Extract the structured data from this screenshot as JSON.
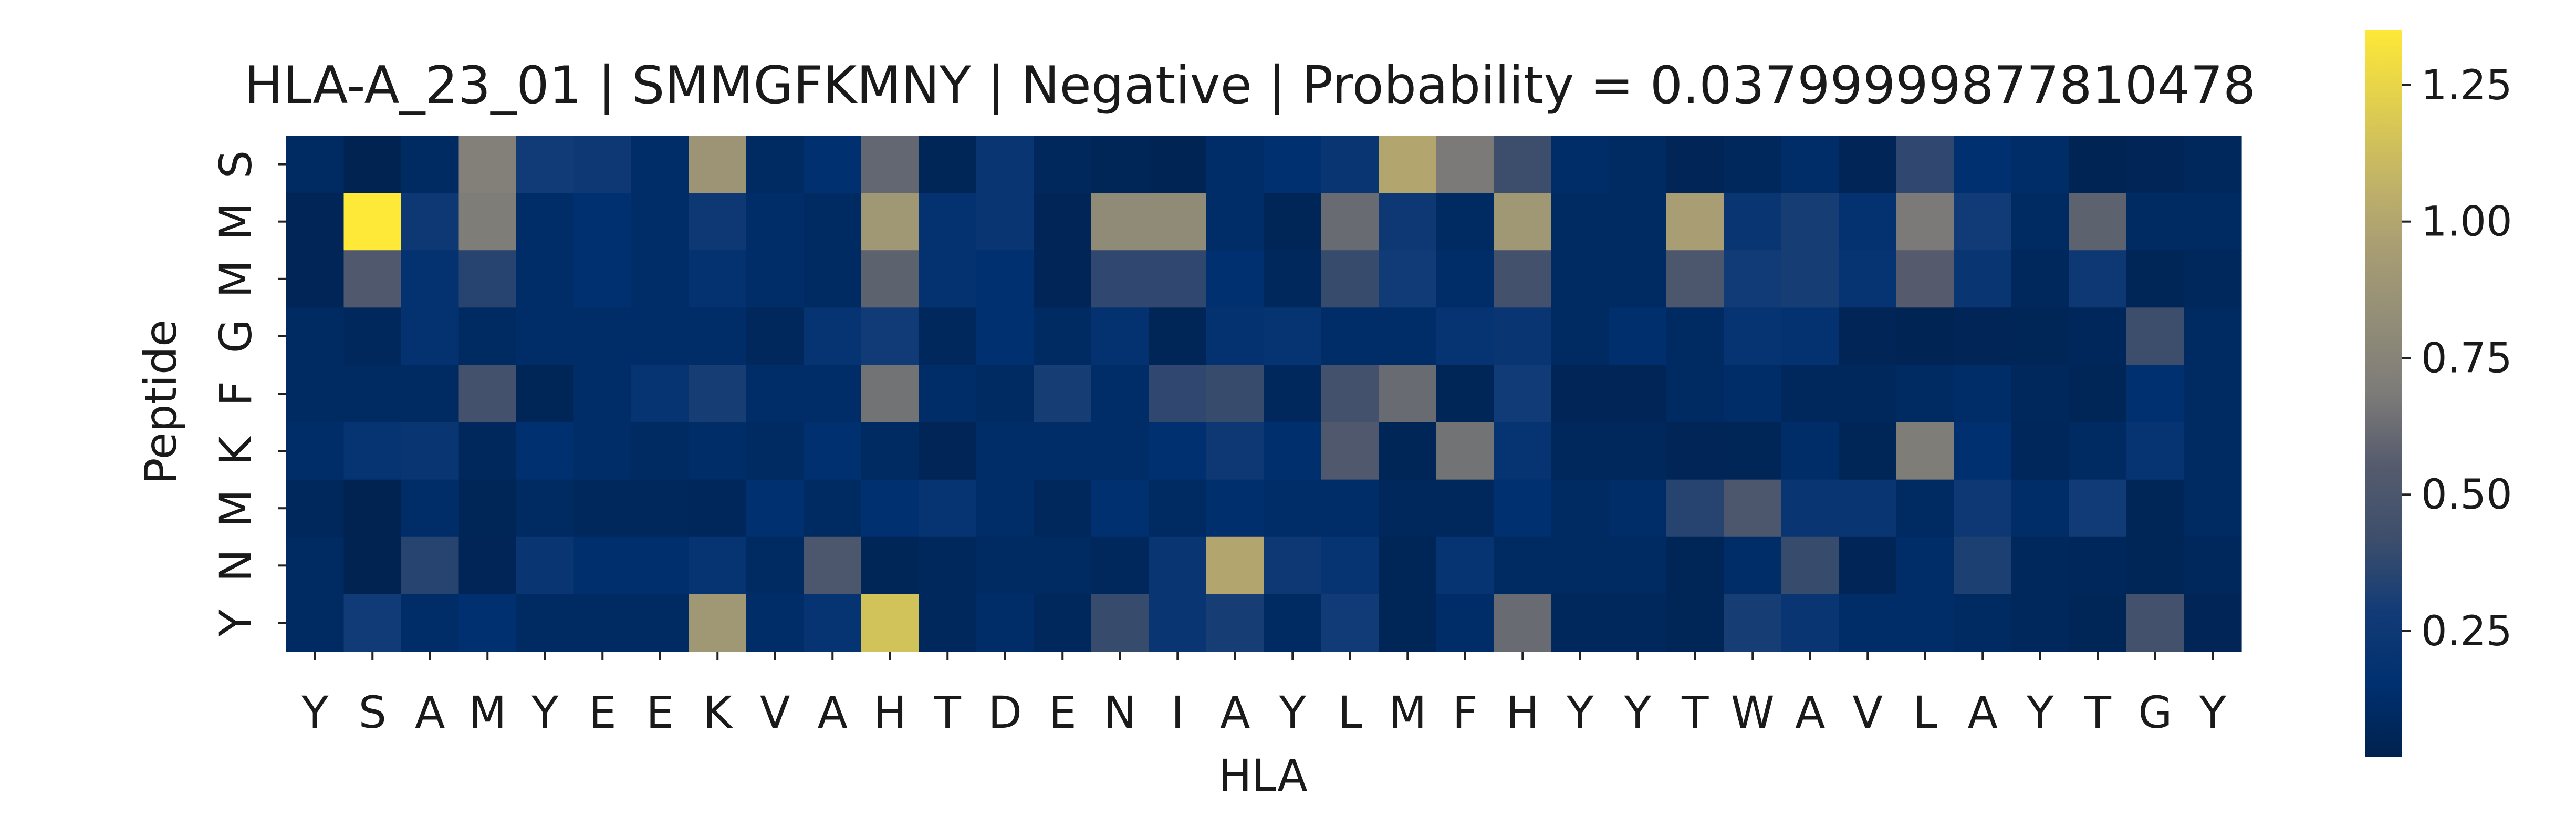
{
  "chart_data": {
    "type": "heatmap",
    "title": "HLA-A_23_01 | SMMGFKMNY | Negative | Probability = 0.03799999877810478",
    "xlabel": "HLA",
    "ylabel": "Peptide",
    "x_categories": [
      "Y",
      "S",
      "A",
      "M",
      "Y",
      "E",
      "E",
      "K",
      "V",
      "A",
      "H",
      "T",
      "D",
      "E",
      "N",
      "I",
      "A",
      "Y",
      "L",
      "M",
      "F",
      "H",
      "Y",
      "Y",
      "T",
      "W",
      "A",
      "V",
      "L",
      "A",
      "Y",
      "T",
      "G",
      "Y"
    ],
    "y_categories": [
      "S",
      "M",
      "M",
      "G",
      "F",
      "K",
      "M",
      "N",
      "Y"
    ],
    "colormap": "cividis",
    "value_range": [
      0.02,
      1.35
    ],
    "colorbar_ticks": [
      "0.25",
      "0.50",
      "0.75",
      "1.00",
      "1.25"
    ],
    "colorbar_tick_values": [
      0.25,
      0.5,
      0.75,
      1.0,
      1.25
    ],
    "values": [
      [
        0.1,
        0.03,
        0.1,
        0.72,
        0.28,
        0.25,
        0.12,
        0.88,
        0.1,
        0.15,
        0.6,
        0.06,
        0.22,
        0.08,
        0.06,
        0.04,
        0.12,
        0.15,
        0.22,
        1.0,
        0.68,
        0.42,
        0.12,
        0.1,
        0.05,
        0.08,
        0.12,
        0.05,
        0.38,
        0.15,
        0.12,
        0.04,
        0.05,
        0.08
      ],
      [
        0.05,
        1.35,
        0.25,
        0.7,
        0.12,
        0.15,
        0.12,
        0.25,
        0.12,
        0.1,
        0.9,
        0.18,
        0.22,
        0.05,
        0.8,
        0.8,
        0.12,
        0.06,
        0.62,
        0.25,
        0.1,
        0.9,
        0.1,
        0.1,
        0.95,
        0.22,
        0.3,
        0.18,
        0.68,
        0.28,
        0.1,
        0.58,
        0.1,
        0.1
      ],
      [
        0.05,
        0.52,
        0.18,
        0.35,
        0.12,
        0.15,
        0.12,
        0.18,
        0.12,
        0.1,
        0.58,
        0.18,
        0.15,
        0.05,
        0.38,
        0.38,
        0.15,
        0.08,
        0.4,
        0.28,
        0.12,
        0.45,
        0.1,
        0.1,
        0.5,
        0.28,
        0.3,
        0.2,
        0.55,
        0.22,
        0.08,
        0.25,
        0.06,
        0.08
      ],
      [
        0.1,
        0.08,
        0.18,
        0.1,
        0.12,
        0.12,
        0.12,
        0.12,
        0.08,
        0.2,
        0.28,
        0.08,
        0.15,
        0.1,
        0.18,
        0.06,
        0.18,
        0.2,
        0.12,
        0.12,
        0.2,
        0.22,
        0.1,
        0.14,
        0.1,
        0.2,
        0.18,
        0.05,
        0.04,
        0.05,
        0.06,
        0.07,
        0.42,
        0.1
      ],
      [
        0.1,
        0.1,
        0.1,
        0.45,
        0.06,
        0.12,
        0.2,
        0.3,
        0.12,
        0.12,
        0.65,
        0.12,
        0.1,
        0.3,
        0.12,
        0.38,
        0.4,
        0.08,
        0.45,
        0.62,
        0.06,
        0.28,
        0.05,
        0.05,
        0.1,
        0.12,
        0.08,
        0.08,
        0.1,
        0.12,
        0.08,
        0.06,
        0.15,
        0.1
      ],
      [
        0.12,
        0.2,
        0.22,
        0.08,
        0.15,
        0.12,
        0.1,
        0.12,
        0.1,
        0.15,
        0.1,
        0.05,
        0.12,
        0.12,
        0.12,
        0.15,
        0.25,
        0.14,
        0.52,
        0.06,
        0.65,
        0.2,
        0.08,
        0.08,
        0.05,
        0.06,
        0.12,
        0.06,
        0.7,
        0.15,
        0.07,
        0.1,
        0.2,
        0.1
      ],
      [
        0.08,
        0.03,
        0.12,
        0.06,
        0.1,
        0.08,
        0.08,
        0.07,
        0.15,
        0.1,
        0.15,
        0.2,
        0.12,
        0.08,
        0.15,
        0.1,
        0.14,
        0.12,
        0.12,
        0.08,
        0.08,
        0.15,
        0.1,
        0.12,
        0.35,
        0.5,
        0.22,
        0.22,
        0.1,
        0.25,
        0.12,
        0.28,
        0.06,
        0.1
      ],
      [
        0.1,
        0.03,
        0.35,
        0.05,
        0.22,
        0.14,
        0.14,
        0.2,
        0.1,
        0.5,
        0.06,
        0.08,
        0.1,
        0.1,
        0.08,
        0.22,
        1.0,
        0.25,
        0.2,
        0.06,
        0.2,
        0.1,
        0.1,
        0.1,
        0.06,
        0.12,
        0.4,
        0.05,
        0.12,
        0.32,
        0.08,
        0.07,
        0.06,
        0.08
      ],
      [
        0.1,
        0.28,
        0.12,
        0.15,
        0.1,
        0.1,
        0.1,
        0.9,
        0.12,
        0.2,
        1.15,
        0.08,
        0.12,
        0.08,
        0.4,
        0.22,
        0.3,
        0.1,
        0.28,
        0.06,
        0.12,
        0.62,
        0.08,
        0.08,
        0.06,
        0.3,
        0.22,
        0.12,
        0.12,
        0.1,
        0.08,
        0.06,
        0.45,
        0.05
      ]
    ]
  }
}
